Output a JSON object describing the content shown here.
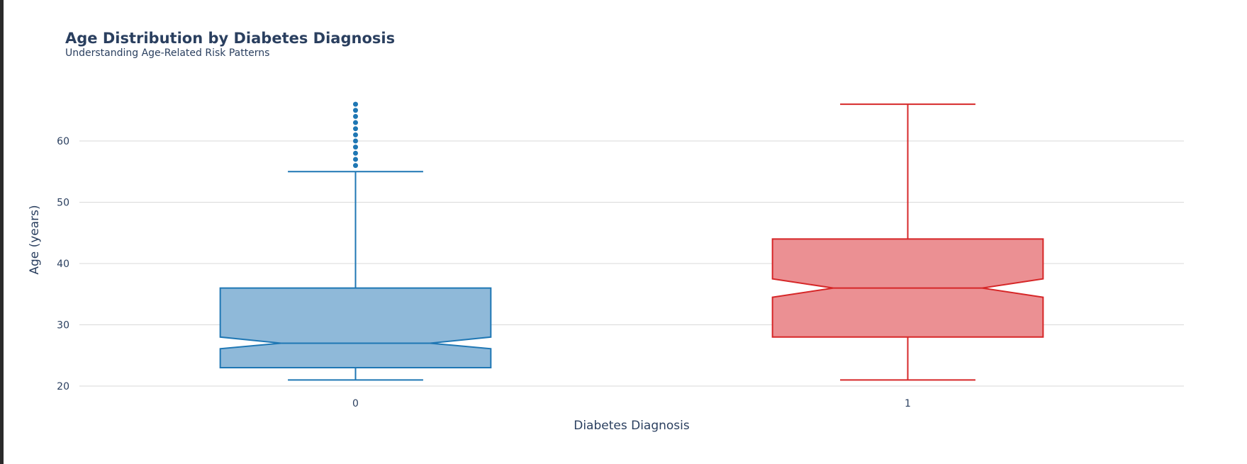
{
  "chart_data": {
    "type": "box",
    "title": "Age Distribution by Diabetes Diagnosis",
    "subtitle": "Understanding Age-Related Risk Patterns",
    "xlabel": "Diabetes Diagnosis",
    "ylabel": "Age (years)",
    "categories": [
      "0",
      "1"
    ],
    "y_ticks": [
      20,
      30,
      40,
      50,
      60
    ],
    "ylim": [
      18,
      70
    ],
    "notched": true,
    "grid": true,
    "boxes": [
      {
        "category": "0",
        "color": "#1f77b4",
        "fill": "#8fb9d9",
        "min": 21,
        "q1": 23,
        "median": 27,
        "q3": 36,
        "max": 55,
        "notch_low": 26.1,
        "notch_high": 28,
        "outliers": [
          56,
          57,
          58,
          59,
          60,
          61,
          62,
          63,
          64,
          65,
          66
        ]
      },
      {
        "category": "1",
        "color": "#d62728",
        "fill": "#eb9093",
        "min": 21,
        "q1": 28,
        "median": 36,
        "q3": 44,
        "max": 66,
        "notch_low": 34.5,
        "notch_high": 37.5,
        "outliers": []
      }
    ]
  }
}
